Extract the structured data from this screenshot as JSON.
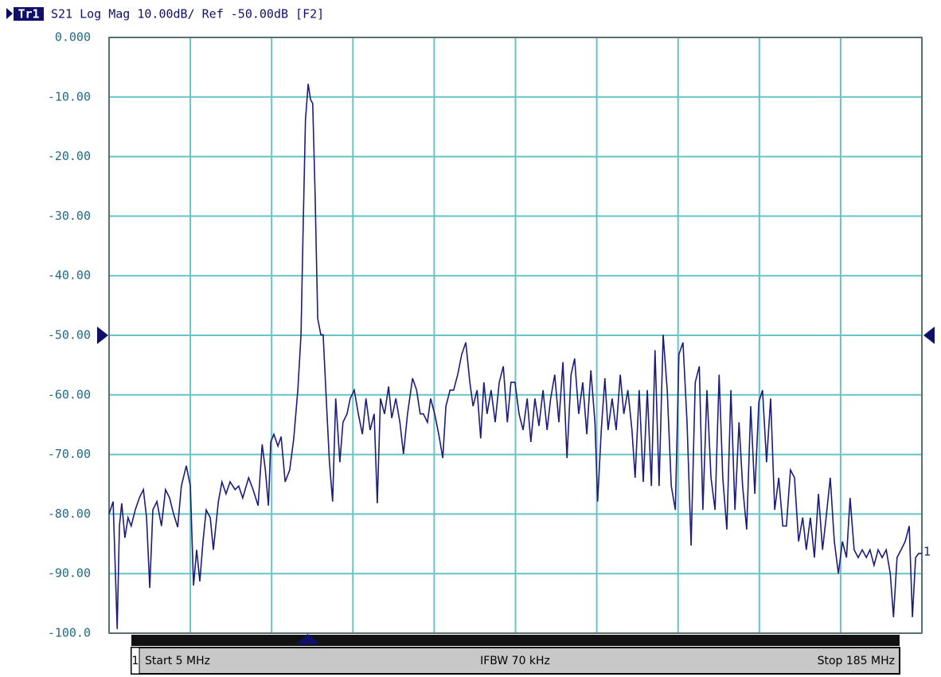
{
  "header": {
    "trace": "Tr1",
    "text": "S21 Log Mag 10.00dB/ Ref -50.00dB [F2]"
  },
  "chart_data": {
    "type": "line",
    "x": [
      5.0,
      5.9,
      6.8,
      7.3,
      7.8,
      8.5,
      9.2,
      9.9,
      10.8,
      11.7,
      12.6,
      13.3,
      14.0,
      14.7,
      15.6,
      16.6,
      17.5,
      18.4,
      19.3,
      20.2,
      21.0,
      22.1,
      23.0,
      23.7,
      24.4,
      25.1,
      25.8,
      26.5,
      27.4,
      28.1,
      29.2,
      30.0,
      30.9,
      31.8,
      32.9,
      33.7,
      34.6,
      35.9,
      36.9,
      38.0,
      38.9,
      39.6,
      40.3,
      40.8,
      41.5,
      42.4,
      43.1,
      44.0,
      45.0,
      45.9,
      46.8,
      47.5,
      48.0,
      48.5,
      49.1,
      49.6,
      50.1,
      50.6,
      51.2,
      51.9,
      52.4,
      53.1,
      53.8,
      54.5,
      55.2,
      56.1,
      56.8,
      57.7,
      58.4,
      59.3,
      60.2,
      61.1,
      61.9,
      62.8,
      63.7,
      64.4,
      65.1,
      66.0,
      66.9,
      67.6,
      68.5,
      69.4,
      70.2,
      71.1,
      72.2,
      73.1,
      73.9,
      74.6,
      75.5,
      76.2,
      77.1,
      78.0,
      78.9,
      79.6,
      80.5,
      81.3,
      82.2,
      83.1,
      84.0,
      84.9,
      85.6,
      86.5,
      87.3,
      88.0,
      88.7,
      89.6,
      90.5,
      91.4,
      92.3,
      93.2,
      94.0,
      94.9,
      95.8,
      96.7,
      97.6,
      98.4,
      99.3,
      100.2,
      101.1,
      102.0,
      102.8,
      103.7,
      104.6,
      105.5,
      106.4,
      107.3,
      108.1,
      109.0,
      109.9,
      110.8,
      111.7,
      112.6,
      113.2,
      114.0,
      114.8,
      115.5,
      116.4,
      117.3,
      118.2,
      119.0,
      119.9,
      120.8,
      121.5,
      122.4,
      123.3,
      124.2,
      125.1,
      125.9,
      126.8,
      127.7,
      128.6,
      129.5,
      130.4,
      131.2,
      132.1,
      133.0,
      133.9,
      134.8,
      135.7,
      136.5,
      137.4,
      138.3,
      139.2,
      140.1,
      140.9,
      141.8,
      142.7,
      143.6,
      144.5,
      145.3,
      146.2,
      147.1,
      148.0,
      148.9,
      149.7,
      150.6,
      151.5,
      152.4,
      153.3,
      154.2,
      155.0,
      155.9,
      156.8,
      157.7,
      158.6,
      159.4,
      160.3,
      161.2,
      162.1,
      163.0,
      163.8,
      164.7,
      165.6,
      166.5,
      167.4,
      168.3,
      169.1,
      170.0,
      170.9,
      171.8,
      172.7,
      173.5,
      174.4,
      175.3,
      176.2,
      177.1,
      178.0,
      178.7,
      179.5,
      180.4,
      181.3,
      182.2,
      182.9,
      183.6,
      184.3,
      185.0
    ],
    "values": [
      -80.0,
      -77.9,
      -99.3,
      -82.0,
      -78.2,
      -84.0,
      -80.6,
      -82.0,
      -79.3,
      -77.3,
      -75.9,
      -80.6,
      -92.4,
      -79.3,
      -77.9,
      -82.0,
      -75.9,
      -77.3,
      -80.0,
      -82.2,
      -75.3,
      -71.9,
      -75.3,
      -92.0,
      -86.0,
      -91.3,
      -84.6,
      -79.3,
      -80.6,
      -86.0,
      -77.9,
      -74.6,
      -76.6,
      -74.6,
      -75.9,
      -75.3,
      -77.3,
      -73.9,
      -75.9,
      -78.6,
      -68.3,
      -72.6,
      -78.6,
      -67.9,
      -66.6,
      -68.6,
      -67.0,
      -74.6,
      -72.6,
      -67.3,
      -59.2,
      -49.9,
      -31.2,
      -13.8,
      -7.8,
      -10.4,
      -11.1,
      -25.8,
      -47.2,
      -49.9,
      -49.9,
      -60.6,
      -71.3,
      -77.9,
      -60.6,
      -71.3,
      -64.6,
      -63.2,
      -60.6,
      -59.2,
      -63.2,
      -66.6,
      -60.6,
      -65.9,
      -63.2,
      -78.2,
      -60.6,
      -63.2,
      -58.6,
      -63.9,
      -60.6,
      -64.6,
      -69.9,
      -63.2,
      -57.2,
      -59.2,
      -63.2,
      -63.2,
      -64.6,
      -60.6,
      -63.2,
      -66.6,
      -70.6,
      -61.9,
      -59.2,
      -59.2,
      -56.6,
      -53.2,
      -51.2,
      -57.9,
      -61.9,
      -59.2,
      -67.3,
      -57.9,
      -63.2,
      -59.2,
      -64.6,
      -57.9,
      -55.2,
      -64.6,
      -57.9,
      -57.9,
      -63.2,
      -65.9,
      -60.6,
      -67.9,
      -60.6,
      -65.2,
      -59.2,
      -65.9,
      -60.6,
      -56.6,
      -64.6,
      -54.5,
      -70.6,
      -56.6,
      -53.9,
      -63.2,
      -57.9,
      -66.6,
      -55.9,
      -64.6,
      -77.9,
      -65.9,
      -57.2,
      -65.9,
      -60.6,
      -65.9,
      -56.6,
      -63.2,
      -59.2,
      -65.9,
      -73.9,
      -59.2,
      -74.6,
      -59.2,
      -75.3,
      -52.5,
      -75.3,
      -49.9,
      -59.2,
      -75.3,
      -79.3,
      -53.2,
      -51.2,
      -64.6,
      -85.3,
      -57.9,
      -55.2,
      -79.3,
      -59.2,
      -73.9,
      -79.3,
      -56.6,
      -73.9,
      -82.6,
      -59.2,
      -79.3,
      -64.6,
      -75.3,
      -82.6,
      -61.9,
      -76.6,
      -61.2,
      -59.2,
      -71.3,
      -60.6,
      -79.3,
      -73.9,
      -82.0,
      -82.0,
      -72.6,
      -73.9,
      -84.6,
      -80.6,
      -86.0,
      -80.6,
      -87.3,
      -76.6,
      -86.0,
      -80.6,
      -73.9,
      -84.6,
      -90.0,
      -84.6,
      -87.3,
      -77.3,
      -86.0,
      -87.3,
      -86.0,
      -87.3,
      -86.0,
      -88.6,
      -86.0,
      -87.3,
      -86.0,
      -90.0,
      -97.3,
      -87.3,
      -86.0,
      -84.6,
      -82.0,
      -97.3,
      -87.3,
      -86.6,
      -86.6
    ],
    "color": "#1c1c7a",
    "xlim": [
      5,
      185
    ],
    "xticks": [
      5,
      23,
      41,
      59,
      77,
      95,
      113,
      131,
      149,
      167,
      185
    ],
    "ylim": [
      -100,
      0
    ],
    "yticks": [
      {
        "value": 0,
        "label": "0.000"
      },
      {
        "value": -10,
        "label": "-10.00"
      },
      {
        "value": -20,
        "label": "-20.00"
      },
      {
        "value": -30,
        "label": "-30.00"
      },
      {
        "value": -40,
        "label": "-40.00"
      },
      {
        "value": -50,
        "label": "-50.00"
      },
      {
        "value": -60,
        "label": "-60.00"
      },
      {
        "value": -70,
        "label": "-70.00"
      },
      {
        "value": -80,
        "label": "-80.00"
      },
      {
        "value": -90,
        "label": "-90.00"
      },
      {
        "value": -100,
        "label": "-100.0"
      }
    ],
    "grid": true,
    "grid_color": "#66c4c4",
    "ref_level": -50,
    "marker_x": 49,
    "trace_label": "1"
  },
  "footer": {
    "channel": "1",
    "start": "Start 5 MHz",
    "ifbw": "IFBW 70 kHz",
    "stop": "Stop 185 MHz"
  }
}
